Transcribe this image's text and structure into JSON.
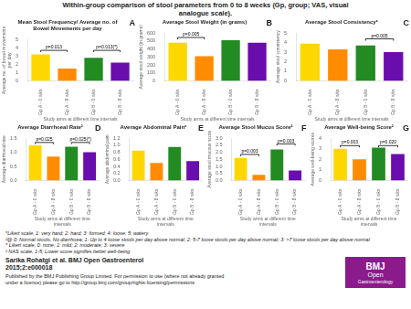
{
  "title": "Within-group comparison of stool parameters from 0 to 8 weeks (Gp, group; VAS, visual\nanalogue scale).",
  "chart_data": [
    {
      "type": "bar",
      "label": "A",
      "title": "Mean Stool Frequency/ Average no. of\nBowel Movements per day",
      "categories": [
        "Gp A - 0 wks",
        "Gp A - 8 wks",
        "Gp B - 0 wks",
        "Gp B - 8 wks"
      ],
      "values": [
        3.2,
        1.5,
        2.8,
        2.2
      ],
      "colors": [
        "#FFD700",
        "#FF8C00",
        "#228B22",
        "#6A0DAD"
      ],
      "xlabel": "Study arms at different time intervals",
      "ylabel": "Average no. of bowel movements\nper day",
      "ylim": [
        0,
        5
      ],
      "yticks": [
        0,
        1,
        2,
        3,
        4,
        5
      ],
      "grid": false,
      "annotations": [
        {
          "text": "p=0.013",
          "from": "Gp A - 0 wks",
          "to": "Gp A - 8 wks",
          "y": 3.7
        },
        {
          "text": "p=0.013(*)",
          "from": "Gp B - 0 wks",
          "to": "Gp B - 8 wks",
          "y": 3.7
        }
      ]
    },
    {
      "type": "bar",
      "label": "B",
      "title": "Average Stool Weight (in grams)",
      "categories": [
        "Gp A - 0 wks",
        "Gp A - 8 wks",
        "Gp B - 0 wks",
        "Gp B - 8 wks"
      ],
      "values": [
        480,
        310,
        510,
        480
      ],
      "colors": [
        "#FFD700",
        "#FF8C00",
        "#228B22",
        "#6A0DAD"
      ],
      "xlabel": "Study arms at different time intervals",
      "ylabel": "Average stool weight (in grams)",
      "ylim": [
        0,
        600
      ],
      "yticks": [
        0,
        100,
        200,
        300,
        400,
        500,
        600
      ],
      "grid": false,
      "annotations": [
        {
          "text": "p=0.005",
          "from": "Gp A - 0 wks",
          "to": "Gp A - 8 wks",
          "y": 545
        }
      ]
    },
    {
      "type": "bar",
      "label": "C",
      "title": "Average Stool Consistency*",
      "categories": [
        "Gp A - 0 wks",
        "Gp A - 8 wks",
        "Gp B - 0 wks",
        "Gp B - 8 wks"
      ],
      "values": [
        3.9,
        3.3,
        3.7,
        3.0
      ],
      "colors": [
        "#FFD700",
        "#FF8C00",
        "#228B22",
        "#6A0DAD"
      ],
      "xlabel": "Study arms at different time intervals",
      "ylabel": "Average stool consistency",
      "ylim": [
        0,
        5
      ],
      "yticks": [
        0,
        1,
        2,
        3,
        4,
        5
      ],
      "grid": false,
      "annotations": [
        {
          "text": "p=0.005",
          "from": "Gp B - 0 wks",
          "to": "Gp B - 8 wks",
          "y": 4.4
        }
      ]
    },
    {
      "type": "bar",
      "label": "D",
      "title": "Average Diarrhoeal Rate²",
      "categories": [
        "Gp A - 0 wks",
        "Gp A - 8 wks",
        "Gp B - 0 wks",
        "Gp B - 8 wks"
      ],
      "values": [
        1.25,
        0.85,
        1.2,
        1.0
      ],
      "colors": [
        "#FFD700",
        "#FF8C00",
        "#228B22",
        "#6A0DAD"
      ],
      "xlabel": "Study arms at different time intervals",
      "ylabel": "Average diarrhoeal rate",
      "ylim": [
        0,
        1.5
      ],
      "yticks": [
        {
          "value": 0,
          "label": "0.0"
        },
        0.5,
        {
          "value": 1,
          "label": "1.0"
        },
        1.5
      ],
      "grid": false,
      "annotations": [
        {
          "text": "p=0.025",
          "from": "Gp A - 0 wks",
          "to": "Gp A - 8 wks",
          "y": 1.35
        },
        {
          "text": "p=0.025(*)",
          "from": "Gp B - 0 wks",
          "to": "Gp B - 8 wks",
          "y": 1.35
        }
      ]
    },
    {
      "type": "bar",
      "label": "E",
      "title": "Average Abdominal Pain*",
      "categories": [
        "Gp A - 0 wks",
        "Gp A - 8 wks",
        "Gp B - 0 wks",
        "Gp B - 8 wks"
      ],
      "values": [
        0.85,
        0.5,
        0.95,
        0.55
      ],
      "colors": [
        "#FFD700",
        "#FF8C00",
        "#228B22",
        "#6A0DAD"
      ],
      "xlabel": "Study arms at different time intervals",
      "ylabel": "Average abdominal pain",
      "ylim": [
        0,
        1.2
      ],
      "yticks": [
        {
          "value": 0,
          "label": "0.0"
        },
        0.2,
        0.4,
        0.6,
        0.8,
        {
          "value": 1,
          "label": "1.0"
        },
        1.2
      ],
      "grid": false
    },
    {
      "type": "bar",
      "label": "F",
      "title": "Average Stool Mucus Score²",
      "categories": [
        "Gp A - 0 wks",
        "Gp A - 8 wks",
        "Gp B - 0 wks",
        "Gp B - 8 wks"
      ],
      "values": [
        1.6,
        0.4,
        2.2,
        0.7
      ],
      "colors": [
        "#FFD700",
        "#FF8C00",
        "#228B22",
        "#6A0DAD"
      ],
      "xlabel": "Study arms at different time intervals",
      "ylabel": "Average stool mucous score",
      "ylim": [
        0,
        3
      ],
      "yticks": [
        {
          "value": 0,
          "label": "0.0"
        },
        0.5,
        {
          "value": 1,
          "label": "1.0"
        },
        1.5,
        {
          "value": 2,
          "label": "2.0"
        },
        2.5,
        {
          "value": 3,
          "label": "3.0"
        }
      ],
      "grid": false,
      "annotations": [
        {
          "text": "p=0.003",
          "from": "Gp A - 0 wks",
          "to": "Gp A - 8 wks",
          "y": 1.85
        },
        {
          "text": "p=0.003",
          "from": "Gp B - 0 wks",
          "to": "Gp B - 8 wks",
          "y": 2.6
        }
      ]
    },
    {
      "type": "bar",
      "label": "G",
      "title": "Average Well-being Score²",
      "categories": [
        "Gp A - 0 wks",
        "Gp A - 8 wks",
        "Gp B - 0 wks",
        "Gp B - 8 wks"
      ],
      "values": [
        3.0,
        2.0,
        3.1,
        2.5
      ],
      "colors": [
        "#FFD700",
        "#FF8C00",
        "#228B22",
        "#6A0DAD"
      ],
      "xlabel": "Study arms at different time intervals",
      "ylabel": "Average well-being scores",
      "ylim": [
        0,
        4
      ],
      "yticks": [
        0,
        1,
        2,
        3,
        4
      ],
      "grid": false,
      "annotations": [
        {
          "text": "p=0.003",
          "from": "Gp A - 0 wks",
          "to": "Gp A - 8 wks",
          "y": 3.3
        },
        {
          "text": "p=0.020",
          "from": "Gp B - 0 wks",
          "to": "Gp B - 8 wks",
          "y": 3.3
        }
      ]
    }
  ],
  "footnotes": [
    "*Likert scale, 1: very hard; 2: hard; 3: formed; 4: loose; 5: watery",
    "²@ 0: Normal stools, No diarrhoea; 1: Up to 4 loose stools per day above normal; 2: 5-7 loose stools per day above normal; 3: >7 loose stools per day above normal",
    "* Likert scale, 0: none; 1: mild; 2: moderate; 3: severe",
    "² NAS scale, 1-5; Lower score signifies better well-being"
  ],
  "author_text": "Sarika Rohatgi et al. BMJ Open Gastroenterol\n2015;2:e000018",
  "published_text": "Published by the BMJ Publishing Group Limited. For permission to use (where not already granted\nunder a licence) please go to http://group.bmj.com/group/rights-licensing/permissions",
  "logo": {
    "text": [
      "BMJ",
      "Open",
      "Gastroenterology"
    ],
    "color": "#8B1A8B"
  }
}
